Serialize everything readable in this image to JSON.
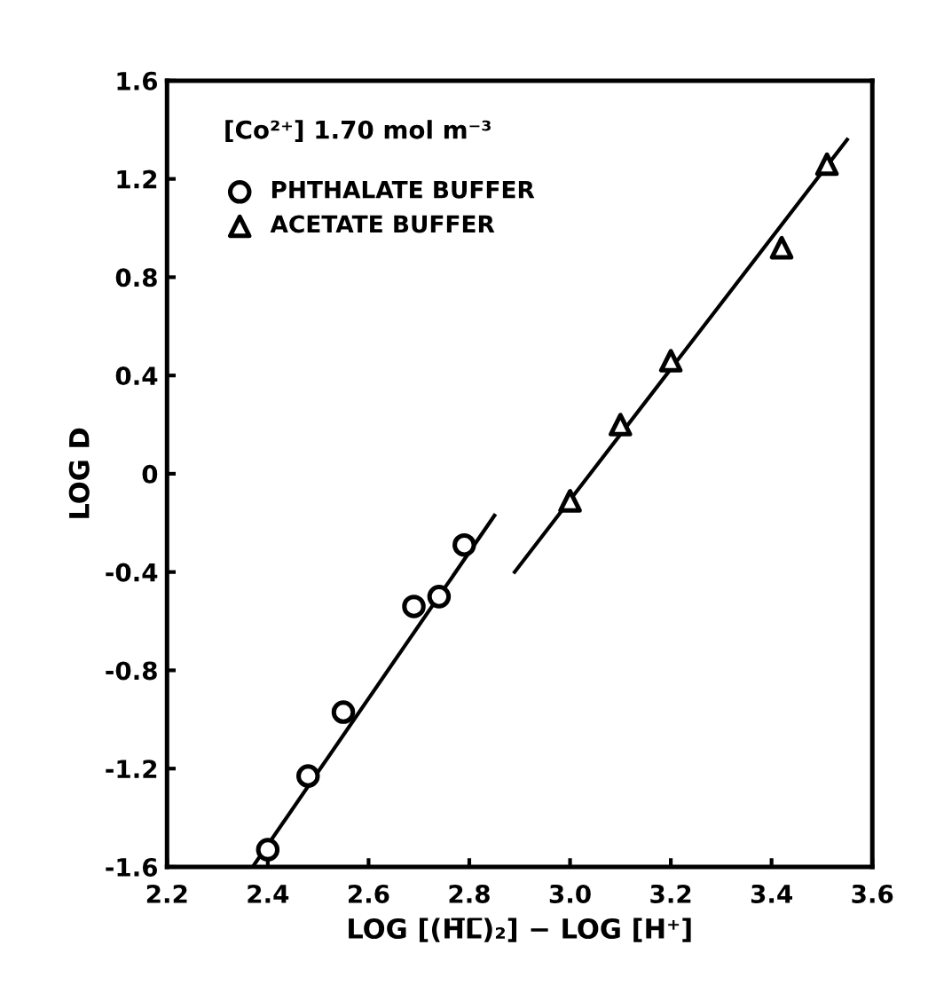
{
  "chart_data": {
    "type": "scatter",
    "xlabel": "LOG [(H̅L̅)₂] − LOG [H⁺]",
    "ylabel": "LOG D",
    "annotations": [
      "[Co²⁺] 1.70 mol m⁻³"
    ],
    "series": [
      {
        "name": "PHTHALATE BUFFER",
        "marker": "circle",
        "color": "#000000",
        "x": [
          2.4,
          2.48,
          2.55,
          2.69,
          2.74,
          2.79
        ],
        "values": [
          -1.53,
          -1.23,
          -0.97,
          -0.54,
          -0.5,
          -0.29
        ]
      },
      {
        "name": "ACETATE BUFFER",
        "marker": "triangle",
        "color": "#000000",
        "x": [
          3.0,
          3.1,
          3.2,
          3.42,
          3.51
        ],
        "values": [
          -0.11,
          0.2,
          0.46,
          0.92,
          1.26
        ]
      },
      {
        "type": "line",
        "color": "#000000",
        "x": [
          2.37,
          2.85
        ],
        "values": [
          -1.6,
          -0.17
        ]
      },
      {
        "type": "line",
        "color": "#000000",
        "x": [
          2.89,
          3.55
        ],
        "values": [
          -0.4,
          1.36
        ]
      }
    ],
    "xlim": [
      2.2,
      3.6
    ],
    "ylim": [
      -1.6,
      1.6
    ],
    "xticks": [
      2.2,
      2.4,
      2.6,
      2.8,
      {
        "value": 3.0,
        "label": "3.0"
      },
      3.2,
      3.4,
      3.6
    ],
    "yticks": [
      {
        "value": -1.6,
        "label": "-1.6"
      },
      {
        "value": -1.2,
        "label": "-1.2"
      },
      {
        "value": -0.8,
        "label": "-0.8"
      },
      {
        "value": -0.4,
        "label": "-0.4"
      },
      0,
      0.4,
      0.8,
      1.2,
      1.6
    ],
    "grid": false,
    "legend": "top left"
  }
}
